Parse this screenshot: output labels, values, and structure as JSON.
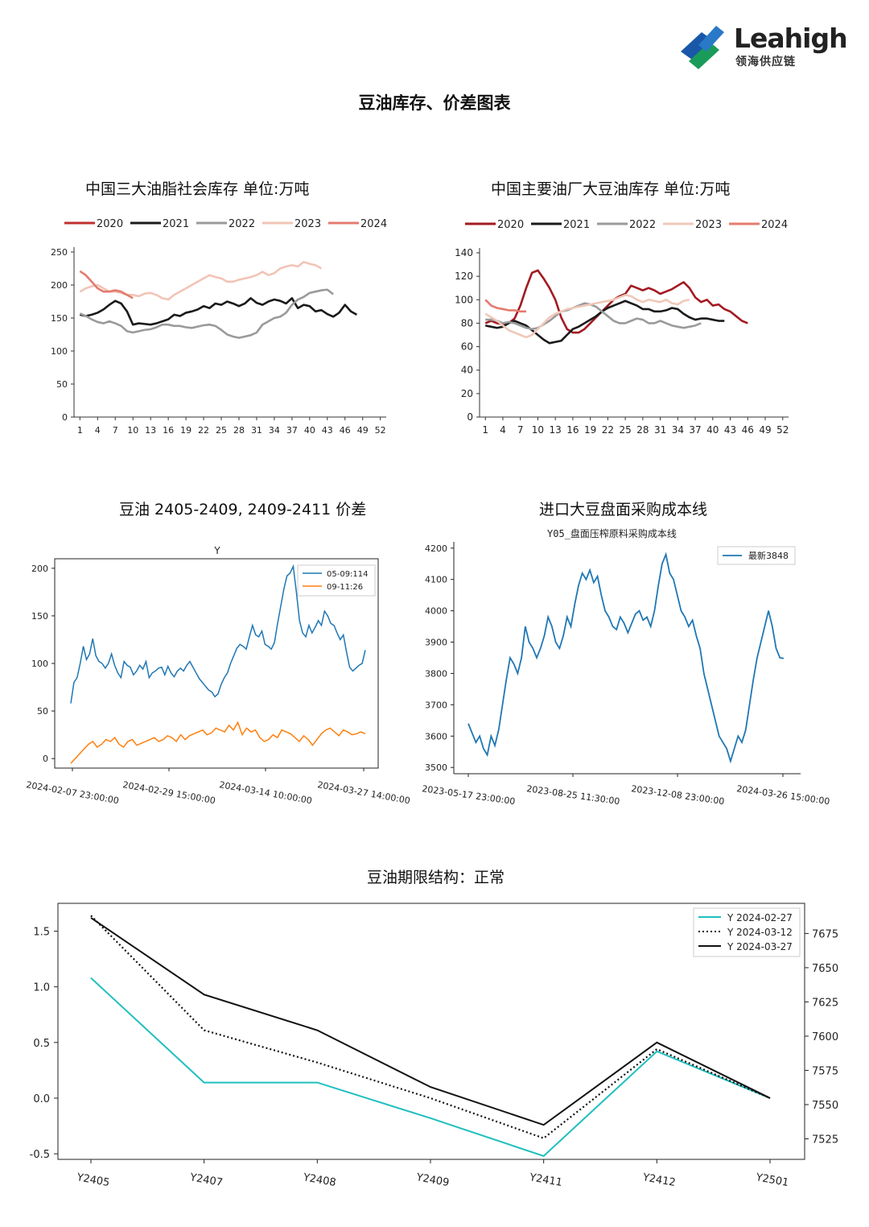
{
  "logo": {
    "word": "Leahigh",
    "sub": "领海供应链"
  },
  "page_title": "豆油库存、价差图表",
  "charts": {
    "c1": {
      "title": "中国三大油脂社会库存  单位:万吨"
    },
    "c2": {
      "title": "中国主要油厂大豆油库存  单位:万吨"
    },
    "c3": {
      "title": "豆油 2405-2409, 2409-2411 价差",
      "inner_title": "Y"
    },
    "c4": {
      "title": "进口大豆盘面采购成本线",
      "subtitle": "Y05_盘面压榨原料采购成本线"
    },
    "c5": {
      "title": "豆油期限结构：正常"
    }
  },
  "chart_data": [
    {
      "id": "c1",
      "type": "line",
      "title": "中国三大油脂社会库存  单位:万吨",
      "x_ticks": [
        1,
        4,
        7,
        10,
        13,
        16,
        19,
        22,
        25,
        28,
        31,
        34,
        37,
        40,
        43,
        46,
        49,
        52
      ],
      "xlim": [
        0,
        53
      ],
      "ylim": [
        0,
        250
      ],
      "y_ticks": [
        0,
        50,
        100,
        150,
        200,
        250
      ],
      "legend_position": "top",
      "series": [
        {
          "name": "2020",
          "color": "#c0302f",
          "x_start": 1,
          "values": []
        },
        {
          "name": "2021",
          "color": "#1a1a1a",
          "x_start": 1,
          "values": [
            155,
            153,
            155,
            158,
            163,
            170,
            176,
            172,
            160,
            140,
            142,
            141,
            140,
            142,
            145,
            148,
            155,
            153,
            158,
            160,
            163,
            168,
            165,
            172,
            170,
            175,
            172,
            168,
            172,
            180,
            173,
            170,
            175,
            178,
            176,
            172,
            180,
            165,
            170,
            168,
            160,
            162,
            156,
            152,
            158,
            170,
            160,
            155
          ]
        },
        {
          "name": "2022",
          "color": "#9a9a9a",
          "x_start": 1,
          "values": [
            157,
            153,
            148,
            144,
            142,
            145,
            142,
            138,
            130,
            128,
            130,
            132,
            133,
            136,
            140,
            140,
            138,
            138,
            136,
            135,
            137,
            139,
            140,
            138,
            132,
            125,
            122,
            120,
            122,
            124,
            128,
            140,
            145,
            150,
            152,
            158,
            170,
            178,
            182,
            188,
            190,
            192,
            193,
            186
          ]
        },
        {
          "name": "2023",
          "color": "#f2c4b6",
          "x_start": 1,
          "values": [
            190,
            195,
            198,
            200,
            195,
            190,
            190,
            188,
            185,
            185,
            183,
            187,
            188,
            185,
            180,
            178,
            185,
            190,
            195,
            200,
            205,
            210,
            215,
            212,
            210,
            205,
            205,
            208,
            210,
            212,
            215,
            220,
            215,
            218,
            225,
            228,
            230,
            228,
            235,
            232,
            230,
            225
          ]
        },
        {
          "name": "2024",
          "color": "#e47b6f",
          "x_start": 1,
          "values": [
            221,
            215,
            205,
            195,
            190,
            190,
            192,
            190,
            185,
            180
          ]
        }
      ]
    },
    {
      "id": "c2",
      "type": "line",
      "title": "中国主要油厂大豆油库存  单位:万吨",
      "x_ticks": [
        1,
        4,
        7,
        10,
        13,
        16,
        19,
        22,
        25,
        28,
        31,
        34,
        37,
        40,
        43,
        46,
        49,
        52
      ],
      "xlim": [
        0,
        53
      ],
      "ylim": [
        0,
        140
      ],
      "y_ticks": [
        0,
        20,
        40,
        60,
        80,
        100,
        120,
        140
      ],
      "legend_position": "top",
      "series": [
        {
          "name": "2020",
          "color": "#a31a22",
          "x_start": 1,
          "values": [
            80,
            82,
            80,
            79,
            80,
            84,
            95,
            110,
            123,
            125,
            118,
            110,
            100,
            85,
            75,
            72,
            72,
            75,
            80,
            85,
            90,
            95,
            100,
            103,
            105,
            112,
            110,
            108,
            110,
            108,
            105,
            107,
            109,
            112,
            115,
            110,
            102,
            98,
            100,
            95,
            96,
            92,
            90,
            86,
            82,
            80
          ]
        },
        {
          "name": "2021",
          "color": "#1a1a1a",
          "x_start": 1,
          "values": [
            78,
            77,
            76,
            77,
            80,
            82,
            80,
            78,
            74,
            70,
            66,
            63,
            64,
            65,
            70,
            75,
            77,
            80,
            83,
            86,
            90,
            93,
            95,
            97,
            99,
            97,
            95,
            92,
            92,
            90,
            90,
            91,
            93,
            92,
            88,
            85,
            83,
            84,
            84,
            83,
            82,
            82
          ]
        },
        {
          "name": "2022",
          "color": "#9a9a9a",
          "x_start": 1,
          "values": [
            83,
            83,
            82,
            80,
            81,
            80,
            78,
            76,
            75,
            76,
            79,
            82,
            86,
            90,
            91,
            93,
            95,
            97,
            96,
            94,
            90,
            86,
            82,
            80,
            80,
            82,
            84,
            83,
            80,
            80,
            82,
            80,
            78,
            77,
            76,
            77,
            78,
            80
          ]
        },
        {
          "name": "2023",
          "color": "#f0c8b8",
          "x_start": 1,
          "values": [
            88,
            85,
            82,
            78,
            74,
            72,
            70,
            68,
            70,
            75,
            80,
            85,
            88,
            90,
            92,
            93,
            94,
            95,
            96,
            97,
            98,
            99,
            100,
            102,
            104,
            103,
            100,
            98,
            100,
            99,
            98,
            100,
            97,
            96,
            99,
            100
          ]
        },
        {
          "name": "2024",
          "color": "#e47b6f",
          "x_start": 1,
          "values": [
            100,
            95,
            93,
            92,
            91,
            91,
            90,
            90
          ]
        }
      ]
    },
    {
      "id": "c3",
      "type": "line",
      "title": "Y",
      "x_tick_labels": [
        "2024-02-07 23:00:00",
        "2024-02-29 15:00:00",
        "2024-03-14 10:00:00",
        "2024-03-27 14:00:00"
      ],
      "ylim": [
        -10,
        210
      ],
      "y_ticks": [
        0,
        50,
        100,
        150,
        200
      ],
      "legend_position": "top-right",
      "series": [
        {
          "name": "05-09:114",
          "color": "#1f77b4",
          "values": [
            58,
            80,
            85,
            100,
            118,
            104,
            110,
            126,
            108,
            102,
            100,
            95,
            100,
            110,
            98,
            90,
            85,
            102,
            98,
            96,
            88,
            92,
            98,
            94,
            102,
            85,
            90,
            92,
            95,
            96,
            88,
            97,
            90,
            86,
            92,
            95,
            92,
            98,
            102,
            96,
            90,
            84,
            80,
            76,
            72,
            70,
            65,
            68,
            78,
            85,
            90,
            100,
            108,
            116,
            120,
            118,
            115,
            128,
            140,
            130,
            128,
            134,
            120,
            118,
            115,
            122,
            142,
            160,
            178,
            192,
            195,
            202,
            175,
            145,
            132,
            128,
            140,
            132,
            138,
            145,
            140,
            155,
            150,
            142,
            140,
            132,
            125,
            130,
            112,
            96,
            92,
            95,
            98,
            100,
            114
          ]
        },
        {
          "name": "09-11:26",
          "color": "#ff7f0e",
          "values": [
            -5,
            0,
            5,
            10,
            15,
            18,
            12,
            15,
            20,
            18,
            22,
            15,
            12,
            18,
            20,
            14,
            16,
            18,
            20,
            22,
            18,
            20,
            24,
            22,
            18,
            25,
            20,
            24,
            26,
            28,
            30,
            25,
            27,
            32,
            30,
            28,
            35,
            30,
            38,
            25,
            32,
            28,
            30,
            22,
            18,
            20,
            25,
            22,
            30,
            28,
            26,
            22,
            18,
            24,
            20,
            14,
            20,
            26,
            30,
            32,
            28,
            24,
            30,
            28,
            25,
            26,
            28,
            26
          ]
        }
      ]
    },
    {
      "id": "c4",
      "type": "line",
      "title": "Y05_盘面压榨原料采购成本线",
      "x_tick_labels": [
        "2023-05-17 23:00:00",
        "2023-08-25 11:30:00",
        "2023-12-08 23:00:00",
        "2024-03-26 15:00:00"
      ],
      "ylim": [
        3480,
        4220
      ],
      "y_ticks": [
        3500,
        3600,
        3700,
        3800,
        3900,
        4000,
        4100,
        4200
      ],
      "legend_position": "top-right",
      "series": [
        {
          "name": "最新3848",
          "color": "#1f77b4",
          "values": [
            3640,
            3610,
            3580,
            3600,
            3560,
            3540,
            3600,
            3570,
            3620,
            3700,
            3780,
            3850,
            3830,
            3800,
            3850,
            3950,
            3900,
            3880,
            3850,
            3880,
            3920,
            3980,
            3950,
            3900,
            3880,
            3920,
            3980,
            3950,
            4020,
            4080,
            4120,
            4100,
            4130,
            4090,
            4110,
            4050,
            4000,
            3980,
            3950,
            3940,
            3980,
            3960,
            3930,
            3960,
            3990,
            4000,
            3970,
            3980,
            3950,
            4000,
            4080,
            4150,
            4180,
            4120,
            4100,
            4050,
            4000,
            3980,
            3950,
            3970,
            3920,
            3880,
            3800,
            3750,
            3700,
            3650,
            3600,
            3580,
            3560,
            3520,
            3560,
            3600,
            3580,
            3620,
            3700,
            3780,
            3850,
            3900,
            3950,
            4000,
            3950,
            3880,
            3850,
            3848
          ]
        }
      ]
    },
    {
      "id": "c5",
      "type": "line",
      "title": "豆油期限结构：正常",
      "categories": [
        "Y2405",
        "Y2407",
        "Y2408",
        "Y2409",
        "Y2411",
        "Y2412",
        "Y2501"
      ],
      "ylim": [
        -0.55,
        1.75
      ],
      "y_ticks": [
        -0.5,
        0.0,
        0.5,
        1.0,
        1.5
      ],
      "y2lim": [
        7510,
        7697
      ],
      "y2_ticks": [
        7525,
        7550,
        7575,
        7600,
        7625,
        7650,
        7675
      ],
      "legend_position": "top-right",
      "series": [
        {
          "name": "Y 2024-02-27",
          "color": "#1fbfbf",
          "style": "solid",
          "values": [
            1.08,
            0.14,
            0.14,
            -0.18,
            -0.52,
            0.42,
            0.0
          ]
        },
        {
          "name": "Y 2024-03-12",
          "color": "#111111",
          "style": "dotted",
          "values": [
            1.64,
            0.61,
            0.32,
            0.0,
            -0.36,
            0.44,
            0.0
          ]
        },
        {
          "name": "Y 2024-03-27",
          "color": "#111111",
          "style": "solid",
          "values": [
            1.62,
            0.93,
            0.61,
            0.1,
            -0.24,
            0.5,
            0.0
          ]
        }
      ]
    }
  ]
}
